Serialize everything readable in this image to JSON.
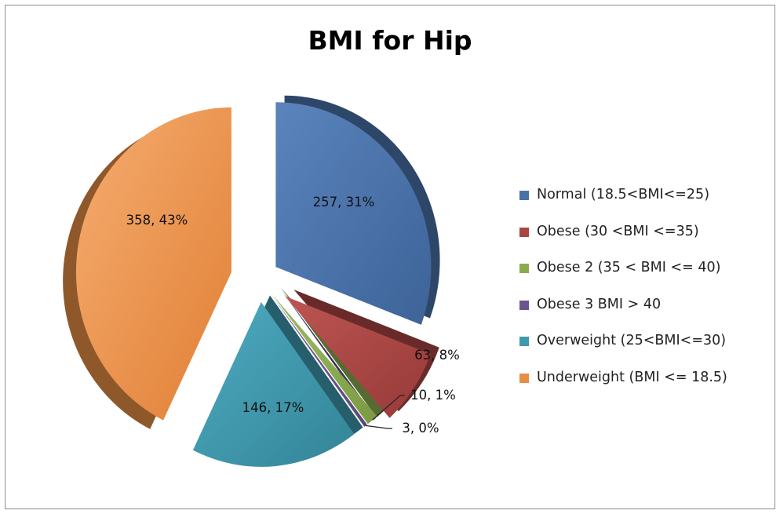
{
  "chart_data": {
    "type": "pie",
    "title": "BMI for Hip",
    "legend_position": "right",
    "slices": [
      {
        "name": "Normal (18.5<BMI<=25)",
        "value": 257,
        "percent": 31,
        "label": "257, 31%",
        "color": "#4a72a9"
      },
      {
        "name": "Obese (30 <BMI <=35)",
        "value": 63,
        "percent": 8,
        "label": "63, 8%",
        "color": "#a94543"
      },
      {
        "name": "Obese 2 (35 < BMI <= 40)",
        "value": 10,
        "percent": 1,
        "label": "10, 1%",
        "color": "#8aac4f"
      },
      {
        "name": "Obese 3 BMI > 40",
        "value": 3,
        "percent": 0,
        "label": "3, 0%",
        "color": "#6b558f"
      },
      {
        "name": "Overweight (25<BMI<=30)",
        "value": 146,
        "percent": 17,
        "label": "146, 17%",
        "color": "#3f98ae"
      },
      {
        "name": "Underweight (BMI <= 18.5)",
        "value": 358,
        "percent": 43,
        "label": "358, 43%",
        "color": "#e68e45"
      }
    ]
  }
}
